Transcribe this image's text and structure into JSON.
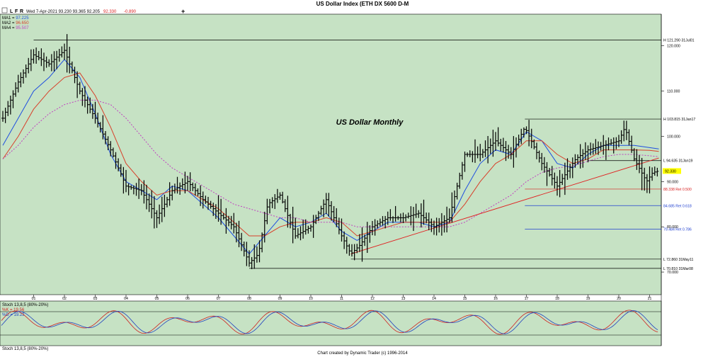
{
  "window": {
    "title": "US Dollar Index (ETH DX 5600 D-M",
    "toolbar": {
      "letters": [
        "L",
        "F",
        "R"
      ],
      "quote": "Wed 7-Apr-2021  93.230  93.365  92.205",
      "last": "92.330",
      "change": "-0.890",
      "plus_symbol": "+"
    },
    "footer": "Chart created by Dynamic Trader  (c)  1996-2014"
  },
  "colors": {
    "background": "#c6e2c4",
    "bars": "#000000",
    "ma1": "#1f4fe0",
    "ma2": "#d8402a",
    "ma4": "#c040c0",
    "retracement_red": "#d82020",
    "retracement_blue": "#2040d0",
    "trendline": "#e02020",
    "current_price": "#ffff00",
    "stoch_k": "#d02020",
    "stoch_d": "#2040c0"
  },
  "legend": [
    {
      "label": "MA1 = ",
      "value": "97.225",
      "color": "#1f4fe0"
    },
    {
      "label": "MA2 = ",
      "value": "96.650",
      "color": "#d8402a"
    },
    {
      "label": "MA4 = ",
      "value": "95.507",
      "color": "#c040c0"
    }
  ],
  "chart_data": {
    "type": "line",
    "title": "US Dollar Monthly",
    "ylim": [
      65,
      127
    ],
    "yticks": [
      "120.000",
      "110.000",
      "100.000",
      "90.000",
      "80.000",
      "70.000"
    ],
    "xticks": [
      "01",
      "02",
      "03",
      "04",
      "05",
      "06",
      "07",
      "08",
      "09",
      "10",
      "11",
      "12",
      "13",
      "14",
      "15",
      "16",
      "17",
      "18",
      "19",
      "20",
      "21"
    ],
    "current_price": {
      "value": 92.33,
      "label": "92.330"
    },
    "price_series": {
      "x": [
        2000.0,
        2000.5,
        2001.0,
        2001.5,
        2002.0,
        2002.5,
        2003.0,
        2003.5,
        2004.0,
        2004.5,
        2005.0,
        2005.5,
        2006.0,
        2006.5,
        2007.0,
        2007.5,
        2008.0,
        2008.3,
        2008.6,
        2009.0,
        2009.5,
        2010.0,
        2010.5,
        2011.0,
        2011.3,
        2011.6,
        2012.0,
        2012.5,
        2013.0,
        2013.5,
        2014.0,
        2014.5,
        2015.0,
        2015.5,
        2016.0,
        2016.5,
        2016.95,
        2017.5,
        2018.0,
        2018.3,
        2018.6,
        2019.0,
        2019.5,
        2020.0,
        2020.2,
        2020.5,
        2020.9,
        2021.1,
        2021.27
      ],
      "y": [
        104,
        112,
        118,
        116,
        119,
        110,
        104,
        97,
        89,
        88,
        82,
        88,
        90,
        86,
        83,
        80,
        72,
        74,
        85,
        87,
        78,
        80,
        86,
        78,
        74,
        76,
        80,
        82,
        82,
        83,
        80,
        82,
        96,
        96,
        99,
        96,
        102,
        94,
        89,
        92,
        95,
        97,
        98,
        99,
        102,
        95,
        90,
        92,
        92.3
      ]
    },
    "series": [
      {
        "name": "MA1",
        "x": [
          2000.0,
          2000.5,
          2001.0,
          2001.5,
          2002.0,
          2002.5,
          2003.0,
          2003.5,
          2004.0,
          2004.5,
          2005.0,
          2005.5,
          2006.0,
          2006.5,
          2007.0,
          2007.5,
          2008.0,
          2008.5,
          2009.0,
          2009.5,
          2010.0,
          2010.5,
          2011.0,
          2011.5,
          2012.0,
          2012.5,
          2013.0,
          2013.5,
          2014.0,
          2014.5,
          2015.0,
          2015.5,
          2016.0,
          2016.5,
          2017.0,
          2017.5,
          2018.0,
          2018.5,
          2019.0,
          2019.5,
          2020.0,
          2020.5,
          2021.0,
          2021.3
        ],
        "y": [
          98,
          104,
          110,
          113,
          117,
          113,
          105,
          96,
          90,
          88,
          86,
          89,
          88,
          85,
          82,
          78,
          74,
          78,
          82,
          80,
          81,
          83,
          79,
          77,
          79,
          81,
          81,
          81,
          80,
          81,
          88,
          94,
          97,
          96,
          101,
          99,
          94,
          93,
          96,
          98,
          98,
          98,
          97.5,
          97.2
        ]
      },
      {
        "name": "MA2",
        "x": [
          2000.0,
          2000.5,
          2001.0,
          2001.5,
          2002.0,
          2002.5,
          2003.0,
          2003.5,
          2004.0,
          2004.5,
          2005.0,
          2005.5,
          2006.0,
          2006.5,
          2007.0,
          2007.5,
          2008.0,
          2008.5,
          2009.0,
          2009.5,
          2010.0,
          2010.5,
          2011.0,
          2011.5,
          2012.0,
          2012.5,
          2013.0,
          2013.5,
          2014.0,
          2014.5,
          2015.0,
          2015.5,
          2016.0,
          2016.5,
          2017.0,
          2017.5,
          2018.0,
          2018.5,
          2019.0,
          2019.5,
          2020.0,
          2020.5,
          2021.0,
          2021.3
        ],
        "y": [
          95,
          100,
          106,
          110,
          113,
          114,
          109,
          102,
          94,
          90,
          87,
          88,
          88,
          86,
          84,
          81,
          78,
          78,
          80,
          81,
          81,
          82,
          81,
          78,
          79,
          80,
          81,
          81,
          81,
          81,
          85,
          90,
          94,
          96,
          99,
          99,
          96,
          94,
          95,
          97,
          97,
          97,
          96.9,
          96.65
        ]
      },
      {
        "name": "MA4",
        "x": [
          2000.0,
          2000.5,
          2001.0,
          2001.5,
          2002.0,
          2002.5,
          2003.0,
          2003.5,
          2004.0,
          2004.5,
          2005.0,
          2005.5,
          2006.0,
          2006.5,
          2007.0,
          2007.5,
          2008.0,
          2008.5,
          2009.0,
          2009.5,
          2010.0,
          2010.5,
          2011.0,
          2011.5,
          2012.0,
          2012.5,
          2013.0,
          2013.5,
          2014.0,
          2014.5,
          2015.0,
          2015.5,
          2016.0,
          2016.5,
          2017.0,
          2017.5,
          2018.0,
          2018.5,
          2019.0,
          2019.5,
          2020.0,
          2020.5,
          2021.0,
          2021.3
        ],
        "y": [
          95,
          98,
          102,
          105,
          107,
          108,
          108,
          107,
          104,
          100,
          96,
          93,
          91,
          89,
          87,
          85,
          84,
          83,
          82,
          82,
          81,
          81,
          81,
          80,
          80,
          80,
          80,
          80,
          80,
          80,
          81,
          83,
          85,
          87,
          90,
          92,
          93,
          93.5,
          94.5,
          95.5,
          96,
          96,
          95.7,
          95.5
        ]
      }
    ],
    "trendlines": [
      {
        "x": [
          2011.3,
          2021.3
        ],
        "y": [
          74.0,
          95.2
        ]
      }
    ],
    "levels": [
      {
        "x0": 2001.0,
        "y": 121.29,
        "label": "H 121.290 31Jul01",
        "color": "#000000"
      },
      {
        "x0": 2016.95,
        "y": 103.815,
        "label": "H 103.815 31Jan17",
        "color": "#000000"
      },
      {
        "x0": 2019.0,
        "y": 94.635,
        "label": "L 94.635 31Jan19",
        "color": "#000000"
      },
      {
        "x0": 2016.95,
        "y": 88.338,
        "label": "88.338  Ret 0.500",
        "color": "#d82020"
      },
      {
        "x0": 2016.95,
        "y": 84.685,
        "label": "84.685  Ret 0.618",
        "color": "#2040d0"
      },
      {
        "x0": 2016.95,
        "y": 79.484,
        "label": "79.484  Ret 0.786",
        "color": "#2040d0"
      },
      {
        "x0": 2011.3,
        "y": 72.86,
        "label": "L 72.860 31May11",
        "color": "#000000"
      },
      {
        "x0": 2008.0,
        "y": 70.81,
        "label": "L 70.810 31Mar08",
        "color": "#000000"
      }
    ]
  },
  "stoch_panel": {
    "lines": [
      "Stoch 13,8,5 (80%-20%)",
      "%K = 19.56",
      "%D = 19.23"
    ],
    "line_colors": [
      "#000000",
      "#d02020",
      "#2040c0"
    ],
    "bottom_label": "Stoch 13,8,5 (80%-20%)"
  }
}
